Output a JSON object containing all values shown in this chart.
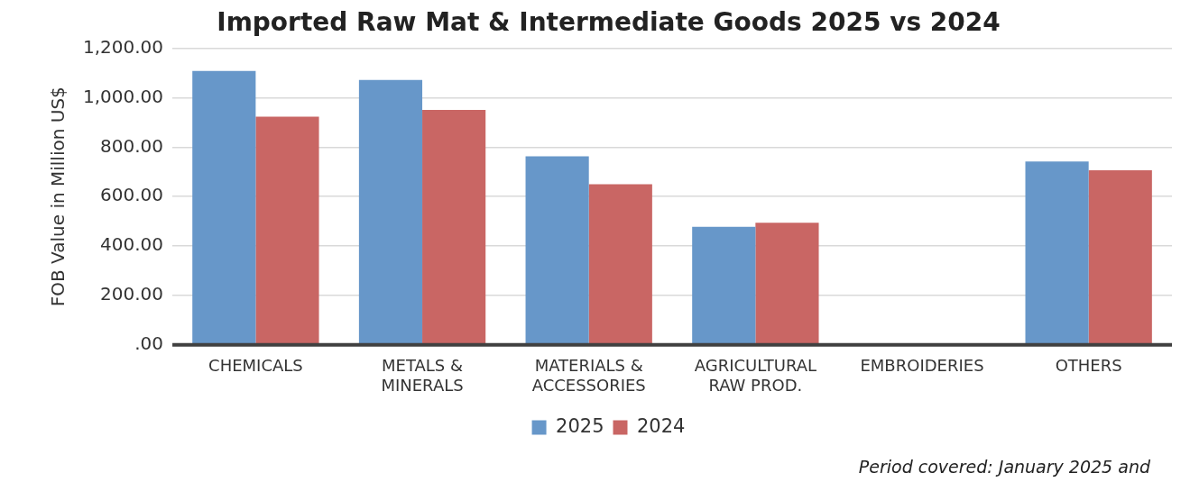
{
  "chart_data": {
    "type": "bar",
    "title": "Imported Raw Mat & Intermediate Goods 2025 vs 2024",
    "ylabel": "FOB Value in Million US$",
    "categories": [
      "CHEMICALS",
      "METALS & MINERALS",
      "MATERIALS & ACCESSORIES",
      "AGRICULTURAL RAW PROD.",
      "EMBROIDERIES",
      "OTHERS"
    ],
    "series": [
      {
        "name": "2025",
        "color": "#6797c9",
        "values": [
          1108,
          1072,
          763,
          478,
          0,
          742
        ]
      },
      {
        "name": "2024",
        "color": "#c96664",
        "values": [
          923,
          951,
          650,
          494,
          0,
          706
        ]
      }
    ],
    "ylim": [
      0,
      1200
    ],
    "yticks": [
      {
        "value": 0,
        "label": ".00"
      },
      {
        "value": 200,
        "label": "200.00"
      },
      {
        "value": 400,
        "label": "400.00"
      },
      {
        "value": 600,
        "label": "600.00"
      },
      {
        "value": 800,
        "label": "800.00"
      },
      {
        "value": 1000,
        "label": "1,000.00"
      },
      {
        "value": 1200,
        "label": "1,200.00"
      }
    ],
    "grid": "y",
    "legend": "bottom",
    "annotations": [
      "Period covered: January 2025 and"
    ]
  }
}
